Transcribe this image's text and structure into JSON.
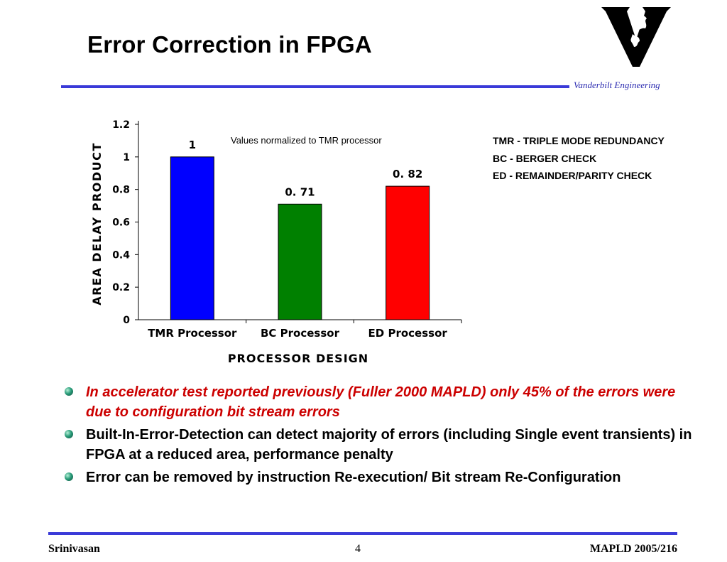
{
  "slide": {
    "title": "Error Correction in FPGA",
    "org": "Vanderbilt Engineering",
    "logo_text": "V"
  },
  "legend": [
    {
      "abbr": "TMR -",
      "text": "TRIPLE MODE REDUNDANCY"
    },
    {
      "abbr": "BC -",
      "text": "BERGER CHECK"
    },
    {
      "abbr": "ED -",
      "text": "REMAINDER/PARITY CHECK"
    }
  ],
  "bullets": [
    {
      "text": "In  accelerator test reported previously (Fuller 2000 MAPLD)  only 45% of the errors were due to configuration bit stream errors",
      "style": "red"
    },
    {
      "text": "Built-In-Error-Detection can detect majority of errors (including Single event transients) in FPGA  at a reduced area, performance penalty",
      "style": "normal"
    },
    {
      "text": "Error can be removed by instruction Re-execution/ Bit stream Re-Configuration",
      "style": "normal"
    }
  ],
  "footer": {
    "left": "Srinivasan",
    "page": "4",
    "right": "MAPLD 2005/216"
  },
  "chart_data": {
    "type": "bar",
    "categories": [
      "TMR Processor",
      "BC Processor",
      "ED Processor"
    ],
    "values": [
      1,
      0.71,
      0.82
    ],
    "value_labels": [
      "1",
      "0. 71",
      "0. 82"
    ],
    "colors": [
      "#0000ff",
      "#008000",
      "#ff0000"
    ],
    "annotation": "Values normalized to TMR processor",
    "xlabel": "PROCESSOR DESIGN",
    "ylabel": "AREA DELAY PRODUCT",
    "ylim": [
      0,
      1.2
    ],
    "yticks": [
      "0",
      "0.2",
      "0.4",
      "0.6",
      "0.8",
      "1",
      "1.2"
    ],
    "grid": false
  }
}
